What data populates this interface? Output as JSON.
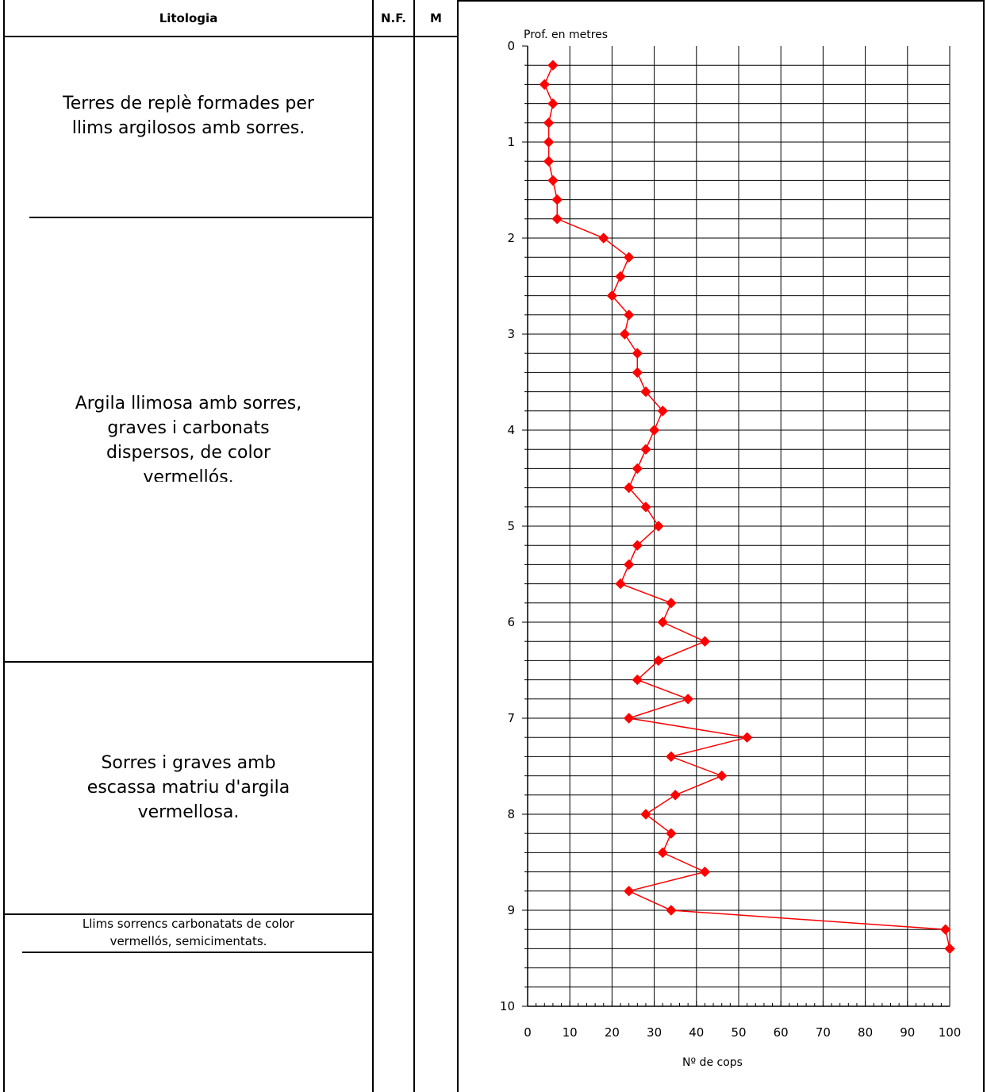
{
  "table": {
    "headers": {
      "lithology": "Litologia",
      "nf": "N.F.",
      "m": "M"
    },
    "layers": [
      {
        "text": "Terres de replè formades per\nllims argilosos amb sorres."
      },
      {
        "text": "Argila llimosa amb sorres,\ngraves i carbonats\ndispersos, de color\nvermellós."
      },
      {
        "text": "Sorres i graves amb\nescassa matriu d'argila\nvermellosa."
      },
      {
        "text": "Llims sorrencs carbonatats de color\nvermellós, semicimentats."
      }
    ]
  },
  "chart_data": {
    "type": "scatter",
    "title": "",
    "ylabel": "Prof. en metres",
    "xlabel": "Nº de cops",
    "xlim": [
      0,
      100
    ],
    "ylim": [
      0,
      10
    ],
    "y_inverted": true,
    "x_ticks": [
      "0",
      "10",
      "20",
      "30",
      "40",
      "50",
      "60",
      "70",
      "80",
      "90",
      "100"
    ],
    "y_ticks": [
      "0",
      "1",
      "2",
      "3",
      "4",
      "5",
      "6",
      "7",
      "8",
      "9",
      "10"
    ],
    "grid": true,
    "series": [
      {
        "color": "#ff0000",
        "marker": "diamond",
        "points": [
          {
            "x": 6,
            "y": 0.2
          },
          {
            "x": 4,
            "y": 0.4
          },
          {
            "x": 6,
            "y": 0.6
          },
          {
            "x": 5,
            "y": 0.8
          },
          {
            "x": 5,
            "y": 1.0
          },
          {
            "x": 5,
            "y": 1.2
          },
          {
            "x": 6,
            "y": 1.4
          },
          {
            "x": 7,
            "y": 1.6
          },
          {
            "x": 7,
            "y": 1.8
          },
          {
            "x": 18,
            "y": 2.0
          },
          {
            "x": 24,
            "y": 2.2
          },
          {
            "x": 22,
            "y": 2.4
          },
          {
            "x": 20,
            "y": 2.6
          },
          {
            "x": 24,
            "y": 2.8
          },
          {
            "x": 23,
            "y": 3.0
          },
          {
            "x": 26,
            "y": 3.2
          },
          {
            "x": 26,
            "y": 3.4
          },
          {
            "x": 28,
            "y": 3.6
          },
          {
            "x": 32,
            "y": 3.8
          },
          {
            "x": 30,
            "y": 4.0
          },
          {
            "x": 28,
            "y": 4.2
          },
          {
            "x": 26,
            "y": 4.4
          },
          {
            "x": 24,
            "y": 4.6
          },
          {
            "x": 28,
            "y": 4.8
          },
          {
            "x": 31,
            "y": 5.0
          },
          {
            "x": 26,
            "y": 5.2
          },
          {
            "x": 24,
            "y": 5.4
          },
          {
            "x": 22,
            "y": 5.6
          },
          {
            "x": 34,
            "y": 5.8
          },
          {
            "x": 32,
            "y": 6.0
          },
          {
            "x": 42,
            "y": 6.2
          },
          {
            "x": 31,
            "y": 6.4
          },
          {
            "x": 26,
            "y": 6.6
          },
          {
            "x": 38,
            "y": 6.8
          },
          {
            "x": 24,
            "y": 7.0
          },
          {
            "x": 52,
            "y": 7.2
          },
          {
            "x": 34,
            "y": 7.4
          },
          {
            "x": 46,
            "y": 7.6
          },
          {
            "x": 35,
            "y": 7.8
          },
          {
            "x": 28,
            "y": 8.0
          },
          {
            "x": 34,
            "y": 8.2
          },
          {
            "x": 32,
            "y": 8.4
          },
          {
            "x": 42,
            "y": 8.6
          },
          {
            "x": 24,
            "y": 8.8
          },
          {
            "x": 34,
            "y": 9.0
          },
          {
            "x": 99,
            "y": 9.2
          },
          {
            "x": 100,
            "y": 9.4
          }
        ]
      }
    ]
  }
}
